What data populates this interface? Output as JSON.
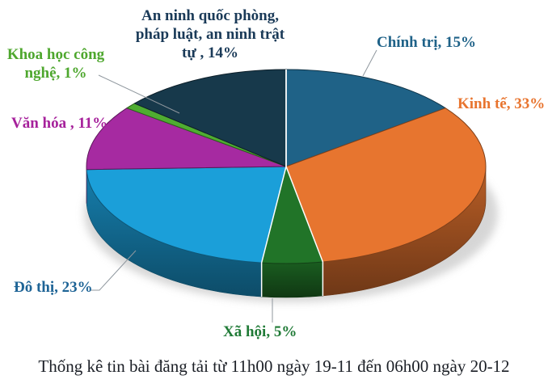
{
  "caption": "Thống kê tin bài đăng tải từ 11h00 ngày 19-11 đến 06h00 ngày 20-12",
  "chart_data": {
    "type": "pie",
    "effect": "3d",
    "direction": "clockwise",
    "start_angle_deg": 0,
    "background": "#FFFFFF",
    "title": "",
    "slices": [
      {
        "id": "chinh-tri",
        "label": "Chính trị",
        "value": 15,
        "unit": "%",
        "color": "#1F6287",
        "callout": "Chính trị, 15%",
        "callout_color": "#1F6288"
      },
      {
        "id": "kinh-te",
        "label": "Kinh tế",
        "value": 33,
        "unit": "%",
        "color": "#E7752F",
        "callout": "Kinh tế, 33%",
        "callout_color": "#E8742E"
      },
      {
        "id": "xa-hoi",
        "label": "Xã hội",
        "value": 5,
        "unit": "%",
        "color": "#217428",
        "callout": "Xã hội, 5%",
        "callout_color": "#1F7A36"
      },
      {
        "id": "do-thi",
        "label": "Đô thị",
        "value": 23,
        "unit": "%",
        "color": "#1B9FD9",
        "callout": "Đô thị, 23%",
        "callout_color": "#1E6496"
      },
      {
        "id": "van-hoa",
        "label": "Văn hóa",
        "value": 11,
        "unit": "%",
        "color": "#A62AA1",
        "callout": "Văn hóa , 11%",
        "callout_color": "#A6219B"
      },
      {
        "id": "khcn",
        "label": "Khoa học công nghệ",
        "value": 1,
        "unit": "%",
        "color": "#4FAD31",
        "callout": "Khoa học công\nnghệ, 1%",
        "callout_color": "#4EA72E"
      },
      {
        "id": "an-ninh",
        "label": "An ninh quốc phòng, pháp luật, an ninh trật tự",
        "value": 14,
        "unit": "%",
        "color": "#17394B",
        "callout": "An ninh quốc phòng,\npháp luật, an ninh trật\ntự , 14%",
        "callout_color": "#1A3A58"
      }
    ],
    "leader_line_color": "#8F979E"
  }
}
